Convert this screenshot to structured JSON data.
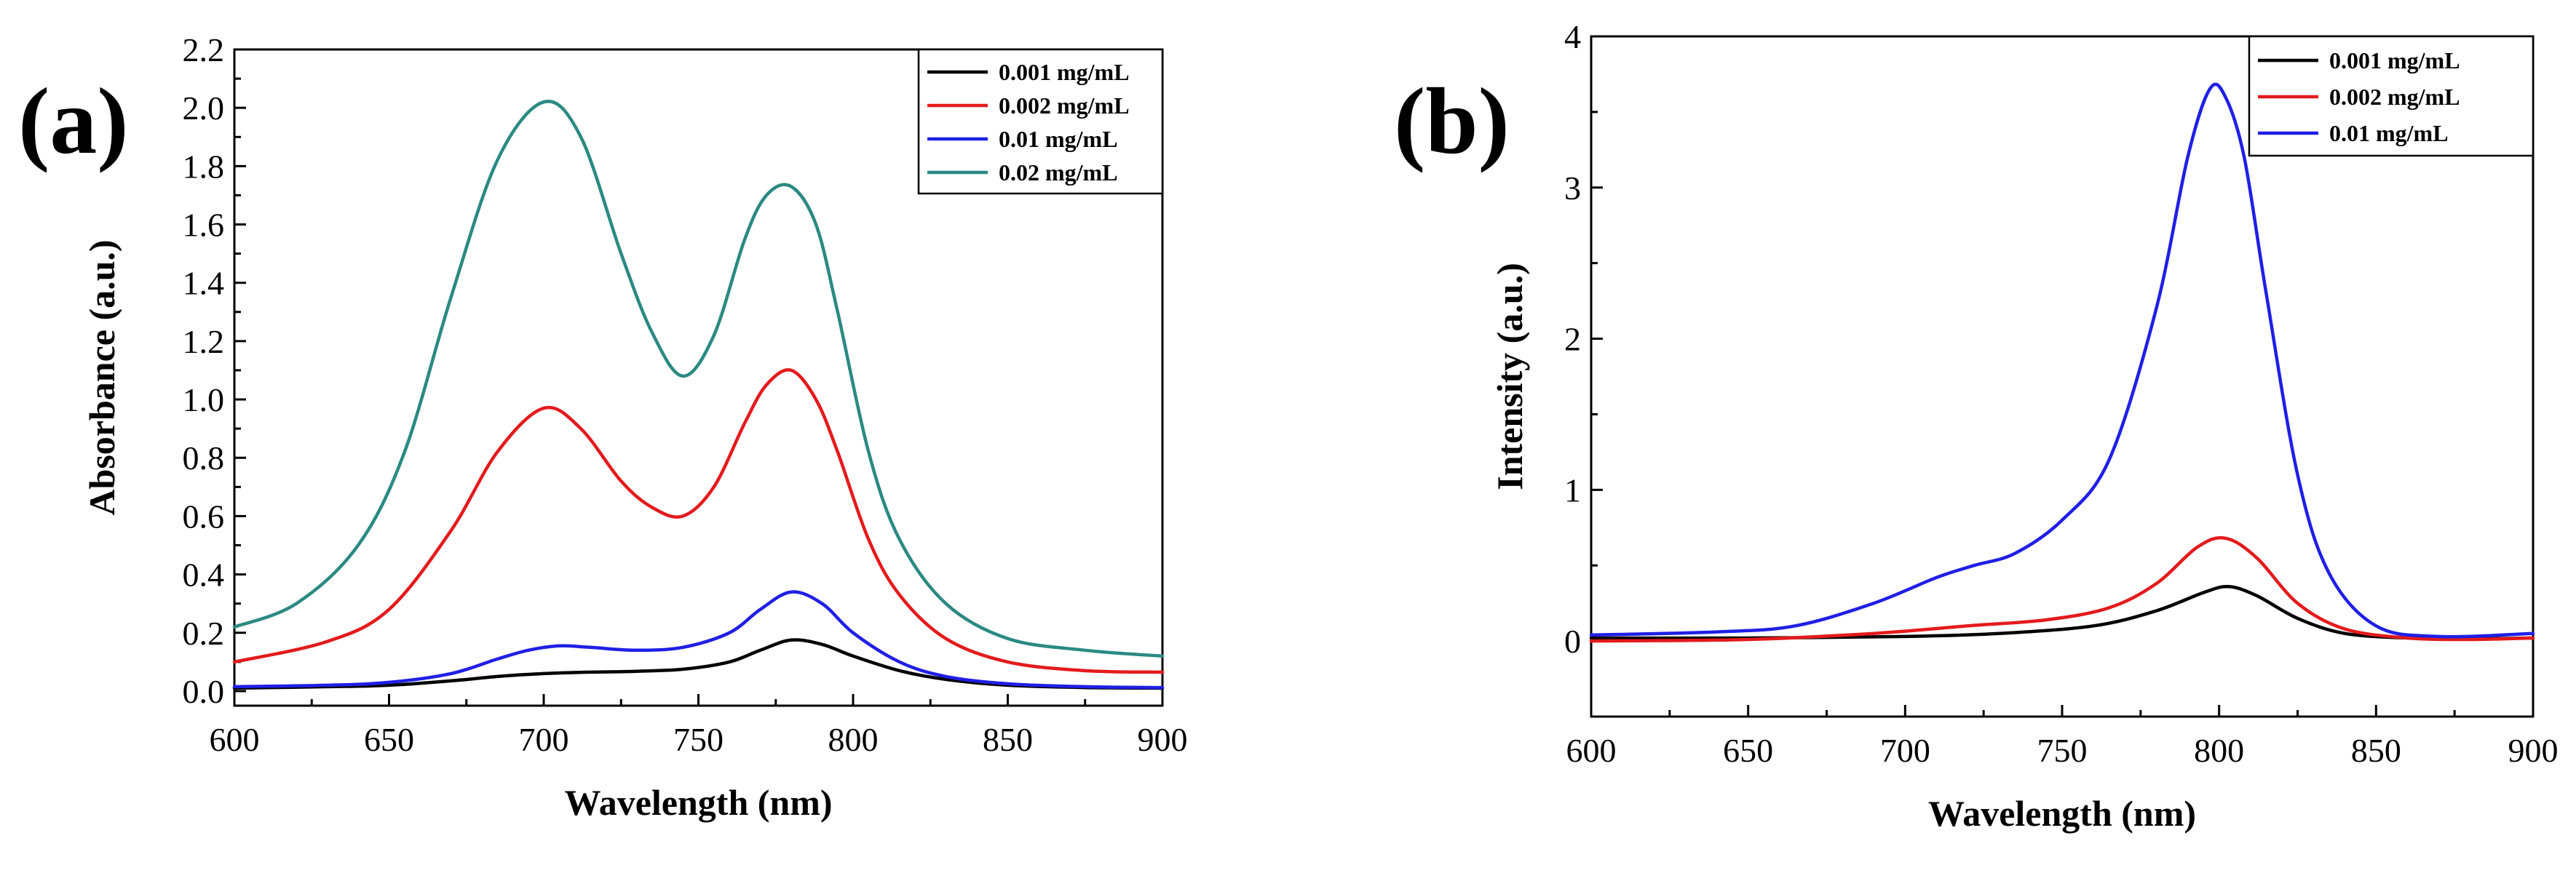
{
  "chart_data": [
    {
      "type": "line",
      "panel_label": "(a)",
      "xlabel": "Wavelength (nm)",
      "ylabel": "Absorbance (a.u.)",
      "xlim": [
        600,
        900
      ],
      "ylim": [
        -0.05,
        2.2
      ],
      "xticks": [
        600,
        650,
        700,
        750,
        800,
        850,
        900
      ],
      "xtick_labels": [
        "600",
        "650",
        "700",
        "750",
        "800",
        "850",
        "900"
      ],
      "yticks": [
        0.0,
        0.2,
        0.4,
        0.6,
        0.8,
        1.0,
        1.2,
        1.4,
        1.6,
        1.8,
        2.0,
        2.2
      ],
      "ytick_labels": [
        "0.0",
        "0.2",
        "0.4",
        "0.6",
        "0.8",
        "1.0",
        "1.2",
        "1.4",
        "1.6",
        "1.8",
        "2.0",
        "2.2"
      ],
      "legend_position": "top-right",
      "series": [
        {
          "name": "0.001 mg/mL",
          "color": "#000000",
          "x": [
            600,
            630,
            650,
            670,
            685,
            700,
            715,
            730,
            745,
            760,
            770,
            780,
            790,
            800,
            815,
            830,
            850,
            875,
            900
          ],
          "y": [
            0.01,
            0.015,
            0.02,
            0.035,
            0.05,
            0.06,
            0.065,
            0.068,
            0.075,
            0.1,
            0.14,
            0.175,
            0.16,
            0.12,
            0.07,
            0.04,
            0.02,
            0.012,
            0.01
          ]
        },
        {
          "name": "0.002 mg/mL",
          "color": "#e41a1c",
          "x": [
            600,
            630,
            650,
            670,
            685,
            700,
            712,
            725,
            735,
            745,
            755,
            765,
            772,
            780,
            788,
            795,
            805,
            815,
            830,
            850,
            875,
            900
          ],
          "y": [
            0.1,
            0.17,
            0.28,
            0.55,
            0.82,
            0.97,
            0.9,
            0.72,
            0.63,
            0.6,
            0.7,
            0.92,
            1.05,
            1.1,
            1.0,
            0.82,
            0.52,
            0.33,
            0.18,
            0.1,
            0.07,
            0.065
          ]
        },
        {
          "name": "0.01 mg/mL",
          "color": "#1f1fe6",
          "x": [
            600,
            630,
            650,
            670,
            685,
            695,
            705,
            715,
            730,
            745,
            760,
            770,
            780,
            790,
            800,
            815,
            830,
            850,
            875,
            900
          ],
          "y": [
            0.015,
            0.02,
            0.03,
            0.06,
            0.11,
            0.14,
            0.155,
            0.15,
            0.14,
            0.15,
            0.2,
            0.28,
            0.34,
            0.3,
            0.2,
            0.1,
            0.05,
            0.025,
            0.015,
            0.012
          ]
        },
        {
          "name": "0.02 mg/mL",
          "color": "#2a8a82",
          "x": [
            600,
            620,
            640,
            655,
            670,
            685,
            700,
            712,
            725,
            735,
            745,
            755,
            765,
            772,
            780,
            788,
            795,
            805,
            815,
            830,
            850,
            875,
            900
          ],
          "y": [
            0.22,
            0.3,
            0.5,
            0.82,
            1.35,
            1.82,
            2.02,
            1.9,
            1.5,
            1.23,
            1.08,
            1.22,
            1.55,
            1.7,
            1.73,
            1.6,
            1.3,
            0.82,
            0.52,
            0.3,
            0.18,
            0.14,
            0.12
          ]
        }
      ]
    },
    {
      "type": "line",
      "panel_label": "(b)",
      "xlabel": "Wavelength (nm)",
      "ylabel": "Intensity (a.u.)",
      "xlim": [
        600,
        900
      ],
      "ylim": [
        -0.5,
        4
      ],
      "xticks": [
        600,
        650,
        700,
        750,
        800,
        850,
        900
      ],
      "xtick_labels": [
        "600",
        "650",
        "700",
        "750",
        "800",
        "850",
        "900"
      ],
      "yticks": [
        0,
        1,
        2,
        3,
        4
      ],
      "ytick_labels": [
        "0",
        "1",
        "2",
        "3",
        "4"
      ],
      "legend_position": "top-right",
      "series": [
        {
          "name": "0.001 mg/mL",
          "color": "#000000",
          "x": [
            600,
            650,
            700,
            730,
            760,
            780,
            795,
            803,
            812,
            825,
            840,
            860,
            880,
            900
          ],
          "y": [
            0.02,
            0.02,
            0.03,
            0.05,
            0.1,
            0.2,
            0.32,
            0.36,
            0.3,
            0.15,
            0.05,
            0.02,
            0.015,
            0.02
          ]
        },
        {
          "name": "0.002 mg/mL",
          "color": "#e41a1c",
          "x": [
            600,
            650,
            690,
            720,
            745,
            765,
            780,
            793,
            802,
            812,
            825,
            840,
            860,
            880,
            900
          ],
          "y": [
            0.0,
            0.01,
            0.05,
            0.1,
            0.14,
            0.22,
            0.38,
            0.62,
            0.68,
            0.55,
            0.25,
            0.08,
            0.02,
            0.01,
            0.02
          ]
        },
        {
          "name": "0.01 mg/mL",
          "color": "#1f1fe6",
          "x": [
            600,
            640,
            665,
            690,
            710,
            722,
            735,
            750,
            765,
            780,
            790,
            797,
            802,
            808,
            815,
            825,
            835,
            850,
            870,
            900
          ],
          "y": [
            0.04,
            0.06,
            0.1,
            0.25,
            0.42,
            0.5,
            0.58,
            0.8,
            1.2,
            2.2,
            3.2,
            3.65,
            3.6,
            3.2,
            2.3,
            1.1,
            0.45,
            0.1,
            0.03,
            0.05
          ]
        }
      ]
    }
  ]
}
